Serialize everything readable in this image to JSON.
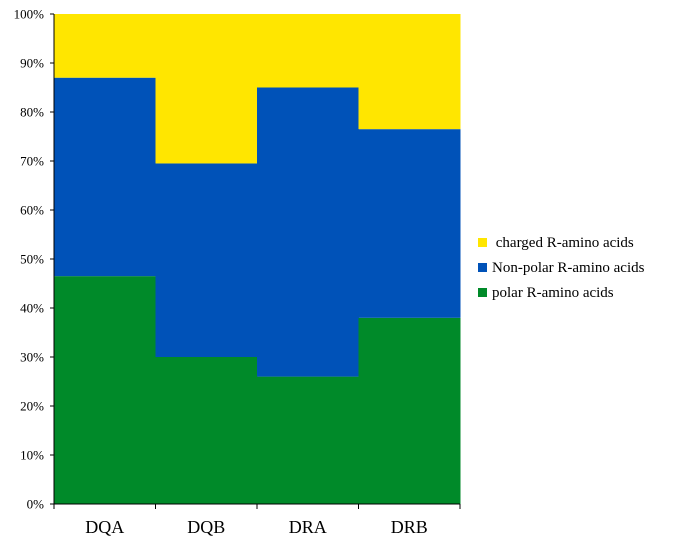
{
  "chart_data": {
    "type": "bar",
    "stacked": true,
    "percent": true,
    "categories": [
      "DQA",
      "DQB",
      "DRA",
      "DRB"
    ],
    "series": [
      {
        "name": "polar R-amino acids",
        "color": "#008a29",
        "values": [
          46.5,
          30,
          26,
          38
        ]
      },
      {
        "name": "Non-polar R-amino acids",
        "color": "#0052b8",
        "values": [
          40.5,
          39.5,
          59,
          38.5
        ]
      },
      {
        "name": "charged R-amino acids",
        "color": "#ffe600",
        "values": [
          13,
          30.5,
          15,
          23.5
        ]
      }
    ],
    "legend_order": [
      2,
      1,
      0
    ],
    "y_ticks": [
      "0%",
      "10%",
      "20%",
      "30%",
      "40%",
      "50%",
      "60%",
      "70%",
      "80%",
      "90%",
      "100%"
    ],
    "ylim": [
      0,
      100
    ],
    "grid": false,
    "legend_position": "right",
    "title": "",
    "xlabel": "",
    "ylabel": ""
  }
}
